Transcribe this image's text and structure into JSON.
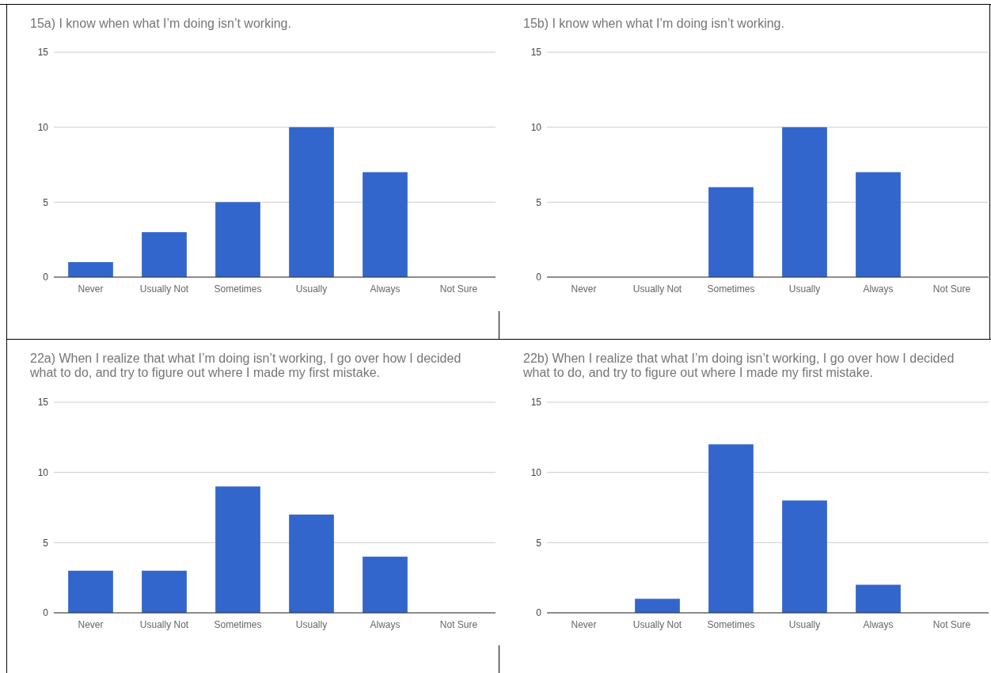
{
  "chart_data": [
    {
      "type": "bar",
      "title": "15a) I know when what I’m doing isn’t working.",
      "categories": [
        "Never",
        "Usually Not",
        "Sometimes",
        "Usually",
        "Always",
        "Not Sure"
      ],
      "values": [
        1,
        3,
        5,
        10,
        7,
        0
      ],
      "color": "#3366cc",
      "ylim": [
        0,
        15
      ],
      "yticks": [
        0,
        5,
        10,
        15
      ],
      "grid": "y"
    },
    {
      "type": "bar",
      "title": "15b) I know when what I’m doing isn’t working.",
      "categories": [
        "Never",
        "Usually Not",
        "Sometimes",
        "Usually",
        "Always",
        "Not Sure"
      ],
      "values": [
        0,
        0,
        6,
        10,
        7,
        0
      ],
      "color": "#3366cc",
      "ylim": [
        0,
        15
      ],
      "yticks": [
        0,
        5,
        10,
        15
      ],
      "grid": "y"
    },
    {
      "type": "bar",
      "title": "22a) When I realize that what I’m doing isn’t working, I go over how I decided what to do, and try to figure out where I made my first mistake.",
      "categories": [
        "Never",
        "Usually Not",
        "Sometimes",
        "Usually",
        "Always",
        "Not Sure"
      ],
      "values": [
        3,
        3,
        9,
        7,
        4,
        0
      ],
      "color": "#3366cc",
      "ylim": [
        0,
        15
      ],
      "yticks": [
        0,
        5,
        10,
        15
      ],
      "grid": "y"
    },
    {
      "type": "bar",
      "title": "22b) When I realize that what I’m doing isn’t working, I go over how I decided what to do, and try to figure out where I made my first mistake.",
      "categories": [
        "Never",
        "Usually Not",
        "Sometimes",
        "Usually",
        "Always",
        "Not Sure"
      ],
      "values": [
        0,
        1,
        12,
        8,
        2,
        0
      ],
      "color": "#3366cc",
      "ylim": [
        0,
        15
      ],
      "yticks": [
        0,
        5,
        10,
        15
      ],
      "grid": "y"
    }
  ]
}
